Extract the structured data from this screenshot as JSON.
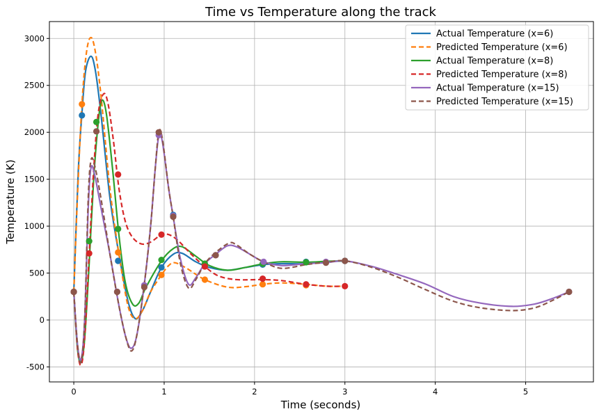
{
  "chart_data": {
    "type": "line",
    "title": "Time vs Temperature along the track",
    "xlabel": "Time (seconds)",
    "ylabel": "Temperature (K)",
    "xlim": [
      -0.27,
      5.75
    ],
    "ylim": [
      -660,
      3180
    ],
    "xticks": [
      0,
      1,
      2,
      3,
      4,
      5
    ],
    "yticks": [
      -500,
      0,
      500,
      1000,
      1500,
      2000,
      2500,
      3000
    ],
    "grid": true,
    "legend_position": "top-right",
    "series": [
      {
        "name": "Actual Temperature (x=6)",
        "color": "#1f77b4",
        "dash": false,
        "curve": [
          [
            0,
            300
          ],
          [
            0.05,
            1600
          ],
          [
            0.09,
            2200
          ],
          [
            0.13,
            2650
          ],
          [
            0.19,
            2810
          ],
          [
            0.24,
            2650
          ],
          [
            0.3,
            2200
          ],
          [
            0.4,
            1300
          ],
          [
            0.5,
            700
          ],
          [
            0.6,
            200
          ],
          [
            0.68,
            15
          ],
          [
            0.76,
            100
          ],
          [
            0.85,
            300
          ],
          [
            0.97,
            560
          ],
          [
            1.1,
            700
          ],
          [
            1.2,
            710
          ],
          [
            1.35,
            620
          ],
          [
            1.5,
            560
          ],
          [
            1.7,
            530
          ],
          [
            1.9,
            560
          ],
          [
            2.1,
            590
          ],
          [
            2.3,
            600
          ],
          [
            2.57,
            600
          ],
          [
            2.8,
            620
          ],
          [
            3.0,
            630
          ]
        ],
        "markers": [
          [
            0,
            300
          ],
          [
            0.09,
            2180
          ],
          [
            0.49,
            630
          ],
          [
            0.97,
            560
          ],
          [
            1.1,
            1120
          ],
          [
            2.09,
            590
          ],
          [
            2.57,
            620
          ],
          [
            3.0,
            630
          ]
        ]
      },
      {
        "name": "Predicted Temperature (x=6)",
        "color": "#ff7f0e",
        "dash": true,
        "curve": [
          [
            0,
            300
          ],
          [
            0.04,
            1300
          ],
          [
            0.09,
            2300
          ],
          [
            0.14,
            2850
          ],
          [
            0.19,
            3010
          ],
          [
            0.24,
            2850
          ],
          [
            0.3,
            2400
          ],
          [
            0.4,
            1400
          ],
          [
            0.5,
            700
          ],
          [
            0.6,
            150
          ],
          [
            0.68,
            15
          ],
          [
            0.76,
            100
          ],
          [
            0.85,
            300
          ],
          [
            0.97,
            480
          ],
          [
            1.05,
            580
          ],
          [
            1.12,
            610
          ],
          [
            1.25,
            550
          ],
          [
            1.45,
            430
          ],
          [
            1.7,
            350
          ],
          [
            1.9,
            355
          ],
          [
            2.09,
            380
          ],
          [
            2.3,
            395
          ],
          [
            2.57,
            380
          ],
          [
            2.8,
            360
          ],
          [
            3.0,
            360
          ]
        ],
        "markers": [
          [
            0,
            300
          ],
          [
            0.09,
            2300
          ],
          [
            0.49,
            720
          ],
          [
            0.97,
            480
          ],
          [
            1.45,
            430
          ],
          [
            2.09,
            380
          ],
          [
            2.57,
            370
          ]
        ]
      },
      {
        "name": "Actual Temperature (x=8)",
        "color": "#2ca02c",
        "dash": false,
        "curve": [
          [
            0,
            300
          ],
          [
            0.04,
            -300
          ],
          [
            0.08,
            -450
          ],
          [
            0.12,
            -200
          ],
          [
            0.17,
            600
          ],
          [
            0.22,
            1500
          ],
          [
            0.27,
            2100
          ],
          [
            0.31,
            2340
          ],
          [
            0.36,
            2200
          ],
          [
            0.43,
            1600
          ],
          [
            0.5,
            900
          ],
          [
            0.57,
            400
          ],
          [
            0.65,
            170
          ],
          [
            0.72,
            180
          ],
          [
            0.8,
            350
          ],
          [
            0.97,
            630
          ],
          [
            1.1,
            760
          ],
          [
            1.2,
            780
          ],
          [
            1.35,
            680
          ],
          [
            1.5,
            580
          ],
          [
            1.7,
            530
          ],
          [
            1.9,
            560
          ],
          [
            2.1,
            600
          ],
          [
            2.3,
            620
          ],
          [
            2.57,
            615
          ],
          [
            2.8,
            625
          ],
          [
            3.0,
            630
          ]
        ],
        "markers": [
          [
            0,
            300
          ],
          [
            0.17,
            840
          ],
          [
            0.25,
            2110
          ],
          [
            0.49,
            970
          ],
          [
            0.97,
            640
          ],
          [
            1.45,
            600
          ],
          [
            2.09,
            600
          ],
          [
            2.57,
            615
          ],
          [
            3.0,
            630
          ]
        ]
      },
      {
        "name": "Predicted Temperature (x=8)",
        "color": "#d62728",
        "dash": true,
        "curve": [
          [
            0,
            300
          ],
          [
            0.04,
            -300
          ],
          [
            0.08,
            -480
          ],
          [
            0.12,
            -200
          ],
          [
            0.17,
            700
          ],
          [
            0.22,
            1600
          ],
          [
            0.27,
            2200
          ],
          [
            0.33,
            2410
          ],
          [
            0.38,
            2300
          ],
          [
            0.44,
            1900
          ],
          [
            0.5,
            1400
          ],
          [
            0.57,
            1050
          ],
          [
            0.65,
            880
          ],
          [
            0.75,
            810
          ],
          [
            0.85,
            830
          ],
          [
            0.97,
            910
          ],
          [
            1.05,
            910
          ],
          [
            1.15,
            850
          ],
          [
            1.3,
            700
          ],
          [
            1.45,
            570
          ],
          [
            1.6,
            470
          ],
          [
            1.8,
            430
          ],
          [
            2.09,
            430
          ],
          [
            2.3,
            420
          ],
          [
            2.57,
            380
          ],
          [
            2.8,
            360
          ],
          [
            3.0,
            360
          ]
        ],
        "markers": [
          [
            0,
            300
          ],
          [
            0.17,
            710
          ],
          [
            0.49,
            1550
          ],
          [
            0.97,
            910
          ],
          [
            1.45,
            570
          ],
          [
            2.09,
            440
          ],
          [
            2.57,
            380
          ],
          [
            3.0,
            360
          ]
        ]
      },
      {
        "name": "Actual Temperature (x=15)",
        "color": "#9467bd",
        "dash": false,
        "curve": [
          [
            0,
            300
          ],
          [
            0.04,
            -250
          ],
          [
            0.08,
            -420
          ],
          [
            0.12,
            0
          ],
          [
            0.16,
            1200
          ],
          [
            0.19,
            1620
          ],
          [
            0.23,
            1550
          ],
          [
            0.3,
            1200
          ],
          [
            0.4,
            700
          ],
          [
            0.5,
            150
          ],
          [
            0.58,
            -200
          ],
          [
            0.64,
            -300
          ],
          [
            0.7,
            -150
          ],
          [
            0.78,
            380
          ],
          [
            0.85,
            1000
          ],
          [
            0.9,
            1600
          ],
          [
            0.94,
            1960
          ],
          [
            0.98,
            1900
          ],
          [
            1.05,
            1400
          ],
          [
            1.1,
            1100
          ],
          [
            1.18,
            650
          ],
          [
            1.27,
            380
          ],
          [
            1.35,
            450
          ],
          [
            1.45,
            600
          ],
          [
            1.57,
            700
          ],
          [
            1.7,
            790
          ],
          [
            1.8,
            780
          ],
          [
            1.95,
            700
          ],
          [
            2.1,
            620
          ],
          [
            2.3,
            580
          ],
          [
            2.57,
            600
          ],
          [
            2.79,
            610
          ],
          [
            3.0,
            630
          ],
          [
            3.3,
            570
          ],
          [
            3.6,
            480
          ],
          [
            3.9,
            380
          ],
          [
            4.2,
            250
          ],
          [
            4.5,
            180
          ],
          [
            4.85,
            145
          ],
          [
            5.1,
            170
          ],
          [
            5.3,
            230
          ],
          [
            5.48,
            300
          ]
        ],
        "markers": [
          [
            0,
            300
          ],
          [
            0.48,
            300
          ],
          [
            0.78,
            370
          ],
          [
            0.94,
            1970
          ],
          [
            1.1,
            1110
          ],
          [
            1.57,
            690
          ],
          [
            2.1,
            620
          ],
          [
            2.79,
            620
          ],
          [
            3.0,
            630
          ],
          [
            5.48,
            300
          ]
        ]
      },
      {
        "name": "Predicted Temperature (x=15)",
        "color": "#8c564b",
        "dash": true,
        "curve": [
          [
            0,
            300
          ],
          [
            0.04,
            -250
          ],
          [
            0.08,
            -450
          ],
          [
            0.12,
            0
          ],
          [
            0.16,
            1300
          ],
          [
            0.19,
            1700
          ],
          [
            0.23,
            1650
          ],
          [
            0.3,
            1300
          ],
          [
            0.4,
            700
          ],
          [
            0.5,
            150
          ],
          [
            0.58,
            -200
          ],
          [
            0.64,
            -330
          ],
          [
            0.7,
            -150
          ],
          [
            0.78,
            380
          ],
          [
            0.85,
            1000
          ],
          [
            0.9,
            1600
          ],
          [
            0.94,
            2000
          ],
          [
            0.98,
            1930
          ],
          [
            1.05,
            1400
          ],
          [
            1.1,
            1100
          ],
          [
            1.18,
            600
          ],
          [
            1.27,
            340
          ],
          [
            1.35,
            430
          ],
          [
            1.45,
            600
          ],
          [
            1.57,
            720
          ],
          [
            1.72,
            820
          ],
          [
            1.8,
            800
          ],
          [
            1.95,
            700
          ],
          [
            2.1,
            620
          ],
          [
            2.3,
            550
          ],
          [
            2.57,
            590
          ],
          [
            2.79,
            615
          ],
          [
            3.0,
            630
          ],
          [
            3.3,
            560
          ],
          [
            3.6,
            450
          ],
          [
            3.9,
            320
          ],
          [
            4.2,
            200
          ],
          [
            4.5,
            130
          ],
          [
            4.85,
            100
          ],
          [
            5.1,
            130
          ],
          [
            5.3,
            210
          ],
          [
            5.48,
            300
          ]
        ],
        "markers": [
          [
            0,
            300
          ],
          [
            0.25,
            2010
          ],
          [
            0.48,
            300
          ],
          [
            0.78,
            350
          ],
          [
            0.94,
            2000
          ],
          [
            1.1,
            1100
          ],
          [
            1.57,
            690
          ],
          [
            2.79,
            610
          ],
          [
            3.0,
            630
          ],
          [
            5.48,
            300
          ]
        ]
      }
    ]
  }
}
